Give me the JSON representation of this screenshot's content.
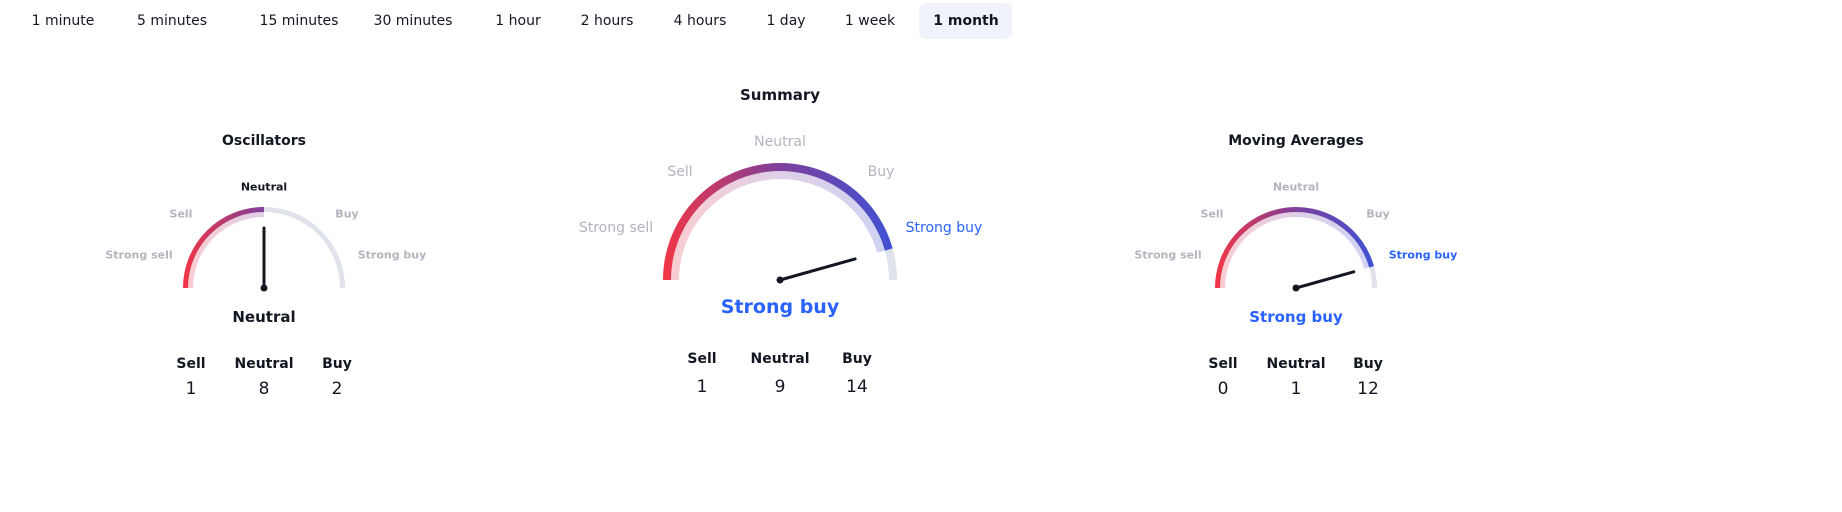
{
  "tabs": [
    {
      "label": "1 minute"
    },
    {
      "label": "5 minutes"
    },
    {
      "label": "15 minutes"
    },
    {
      "label": "30 minutes"
    },
    {
      "label": "1 hour"
    },
    {
      "label": "2 hours"
    },
    {
      "label": "4 hours"
    },
    {
      "label": "1 day"
    },
    {
      "label": "1 week"
    },
    {
      "label": "1 month",
      "active": true
    }
  ],
  "scale_labels": {
    "strong_sell": "Strong sell",
    "sell": "Sell",
    "neutral": "Neutral",
    "buy": "Buy",
    "strong_buy": "Strong buy"
  },
  "count_headers": {
    "sell": "Sell",
    "neutral": "Neutral",
    "buy": "Buy"
  },
  "colors": {
    "sell": "#f23645",
    "neutral": "#7e3f9c",
    "buy": "#3d52d5",
    "track": "#e0e3eb",
    "accent": "#2962ff"
  },
  "gauges": {
    "oscillators": {
      "title": "Oscillators",
      "result": "Neutral",
      "needle_fraction": 0.5,
      "counts": {
        "sell": "1",
        "neutral": "8",
        "buy": "2"
      }
    },
    "summary": {
      "title": "Summary",
      "result": "Strong buy",
      "needle_fraction": 0.913,
      "counts": {
        "sell": "1",
        "neutral": "9",
        "buy": "14"
      }
    },
    "moving_averages": {
      "title": "Moving Averages",
      "result": "Strong buy",
      "needle_fraction": 0.913,
      "counts": {
        "sell": "0",
        "neutral": "1",
        "buy": "12"
      }
    }
  }
}
